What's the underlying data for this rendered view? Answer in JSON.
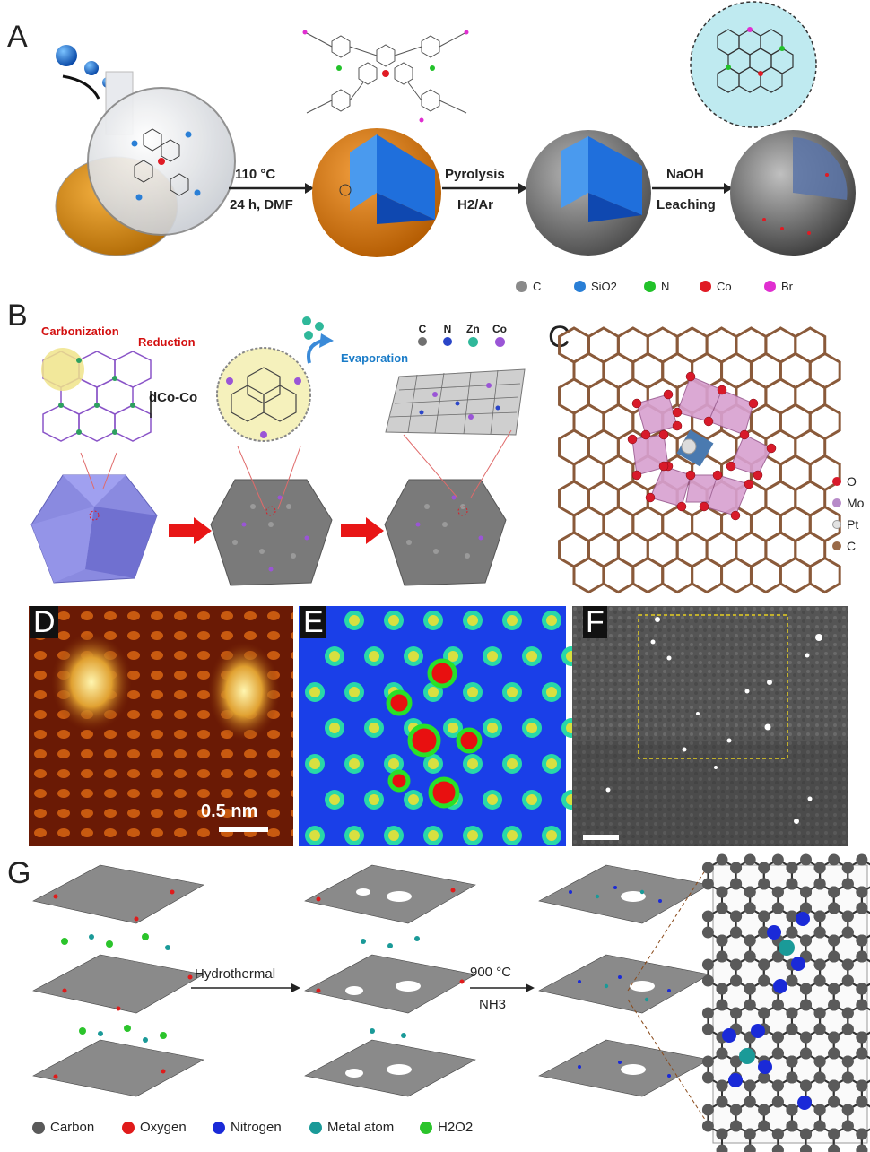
{
  "panels": {
    "A": {
      "letter": "A",
      "arrow1": {
        "line1": "110 °C",
        "line2": "24 h, DMF"
      },
      "arrow2": {
        "line1": "Pyrolysis",
        "line2": "H2/Ar"
      },
      "arrow3": {
        "line1": "NaOH",
        "line2": "Leaching"
      },
      "legend": [
        {
          "label": "C",
          "color": "#8a8a8a"
        },
        {
          "label": "SiO2",
          "color": "#2a7fd6"
        },
        {
          "label": "N",
          "color": "#22c22a"
        },
        {
          "label": "Co",
          "color": "#e01b24"
        },
        {
          "label": "Br",
          "color": "#e02fd0"
        }
      ]
    },
    "B": {
      "letter": "B",
      "carbonization": "Carbonization",
      "reduction": "Reduction",
      "dcoco": "dCo-Co",
      "evaporation": "Evaporation",
      "legend": [
        {
          "label": "C",
          "color": "#707070"
        },
        {
          "label": "N",
          "color": "#2a45c8"
        },
        {
          "label": "Zn",
          "color": "#2fb89a"
        },
        {
          "label": "Co",
          "color": "#9a55d6"
        }
      ]
    },
    "C": {
      "letter": "C",
      "legend": [
        {
          "label": "O",
          "color": "#d81a2a"
        },
        {
          "label": "Mo",
          "color": "#b78ac8"
        },
        {
          "label": "Pt",
          "color": "#e2e2e2"
        },
        {
          "label": "C",
          "color": "#9a6a48"
        }
      ]
    },
    "D": {
      "letter": "D",
      "scale_bar": "0.5 nm"
    },
    "E": {
      "letter": "E"
    },
    "F": {
      "letter": "F"
    },
    "G": {
      "letter": "G",
      "arrow1": "Hydrothermal",
      "arrow2": {
        "line1": "900 °C",
        "line2": "NH3"
      },
      "legend": [
        {
          "label": "Carbon",
          "color": "#5a5a5a"
        },
        {
          "label": "Oxygen",
          "color": "#e01b1b"
        },
        {
          "label": "Nitrogen",
          "color": "#1a2ad8"
        },
        {
          "label": "Metal atom",
          "color": "#1a9a98"
        },
        {
          "label": "H2O2",
          "color": "#2bc42b"
        }
      ]
    }
  }
}
